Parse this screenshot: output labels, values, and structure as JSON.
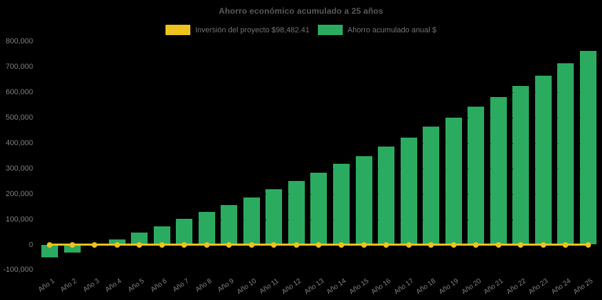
{
  "chart_data": {
    "type": "bar",
    "title": "Ahorro económico acumulado a 25 años",
    "background": "#000000",
    "categories": [
      "Año 1",
      "Año 2",
      "Año 3",
      "Año 4",
      "Año 5",
      "Año 6",
      "Año 7",
      "Año 8",
      "Año 9",
      "Año 10",
      "Año 11",
      "Año 12",
      "Año 13",
      "Año 14",
      "Año 15",
      "Año 16",
      "Año 17",
      "Año 18",
      "Año 19",
      "Año 20",
      "Año 21",
      "Año 22",
      "Año 23",
      "Año 24",
      "Año 25"
    ],
    "series": [
      {
        "name": "Inversión del proyecto $98,482.41",
        "type": "line",
        "color": "#efc31d",
        "marker": "circle",
        "values": [
          0,
          0,
          0,
          0,
          0,
          0,
          0,
          0,
          0,
          0,
          0,
          0,
          0,
          0,
          0,
          0,
          0,
          0,
          0,
          0,
          0,
          0,
          0,
          0,
          0
        ]
      },
      {
        "name": "Ahorro acumulado anual $",
        "type": "bar",
        "color": "#2bab60",
        "values": [
          -50500,
          -30500,
          -2000,
          21000,
          46500,
          71500,
          100500,
          128000,
          155000,
          186000,
          218000,
          250000,
          283000,
          317000,
          349000,
          386500,
          421000,
          463500,
          499500,
          543000,
          581000,
          623000,
          665000,
          712500,
          761000
        ]
      }
    ],
    "yticks": [
      "800,000",
      "700,000",
      "600,000",
      "500,000",
      "400,000",
      "300,000",
      "200,000",
      "100,000",
      "0",
      "-100,000"
    ],
    "ylim": [
      -100000,
      800000
    ],
    "xlabel": "",
    "ylabel": "",
    "grid": "faint horizontal dashes over bars",
    "legend_position": "top-center",
    "x_tick_rotation_deg": -35
  },
  "text_colors": {
    "title": "#595959",
    "legend": "#737373",
    "y_ticks": "#7f7f7f",
    "x_ticks": "#828282"
  }
}
